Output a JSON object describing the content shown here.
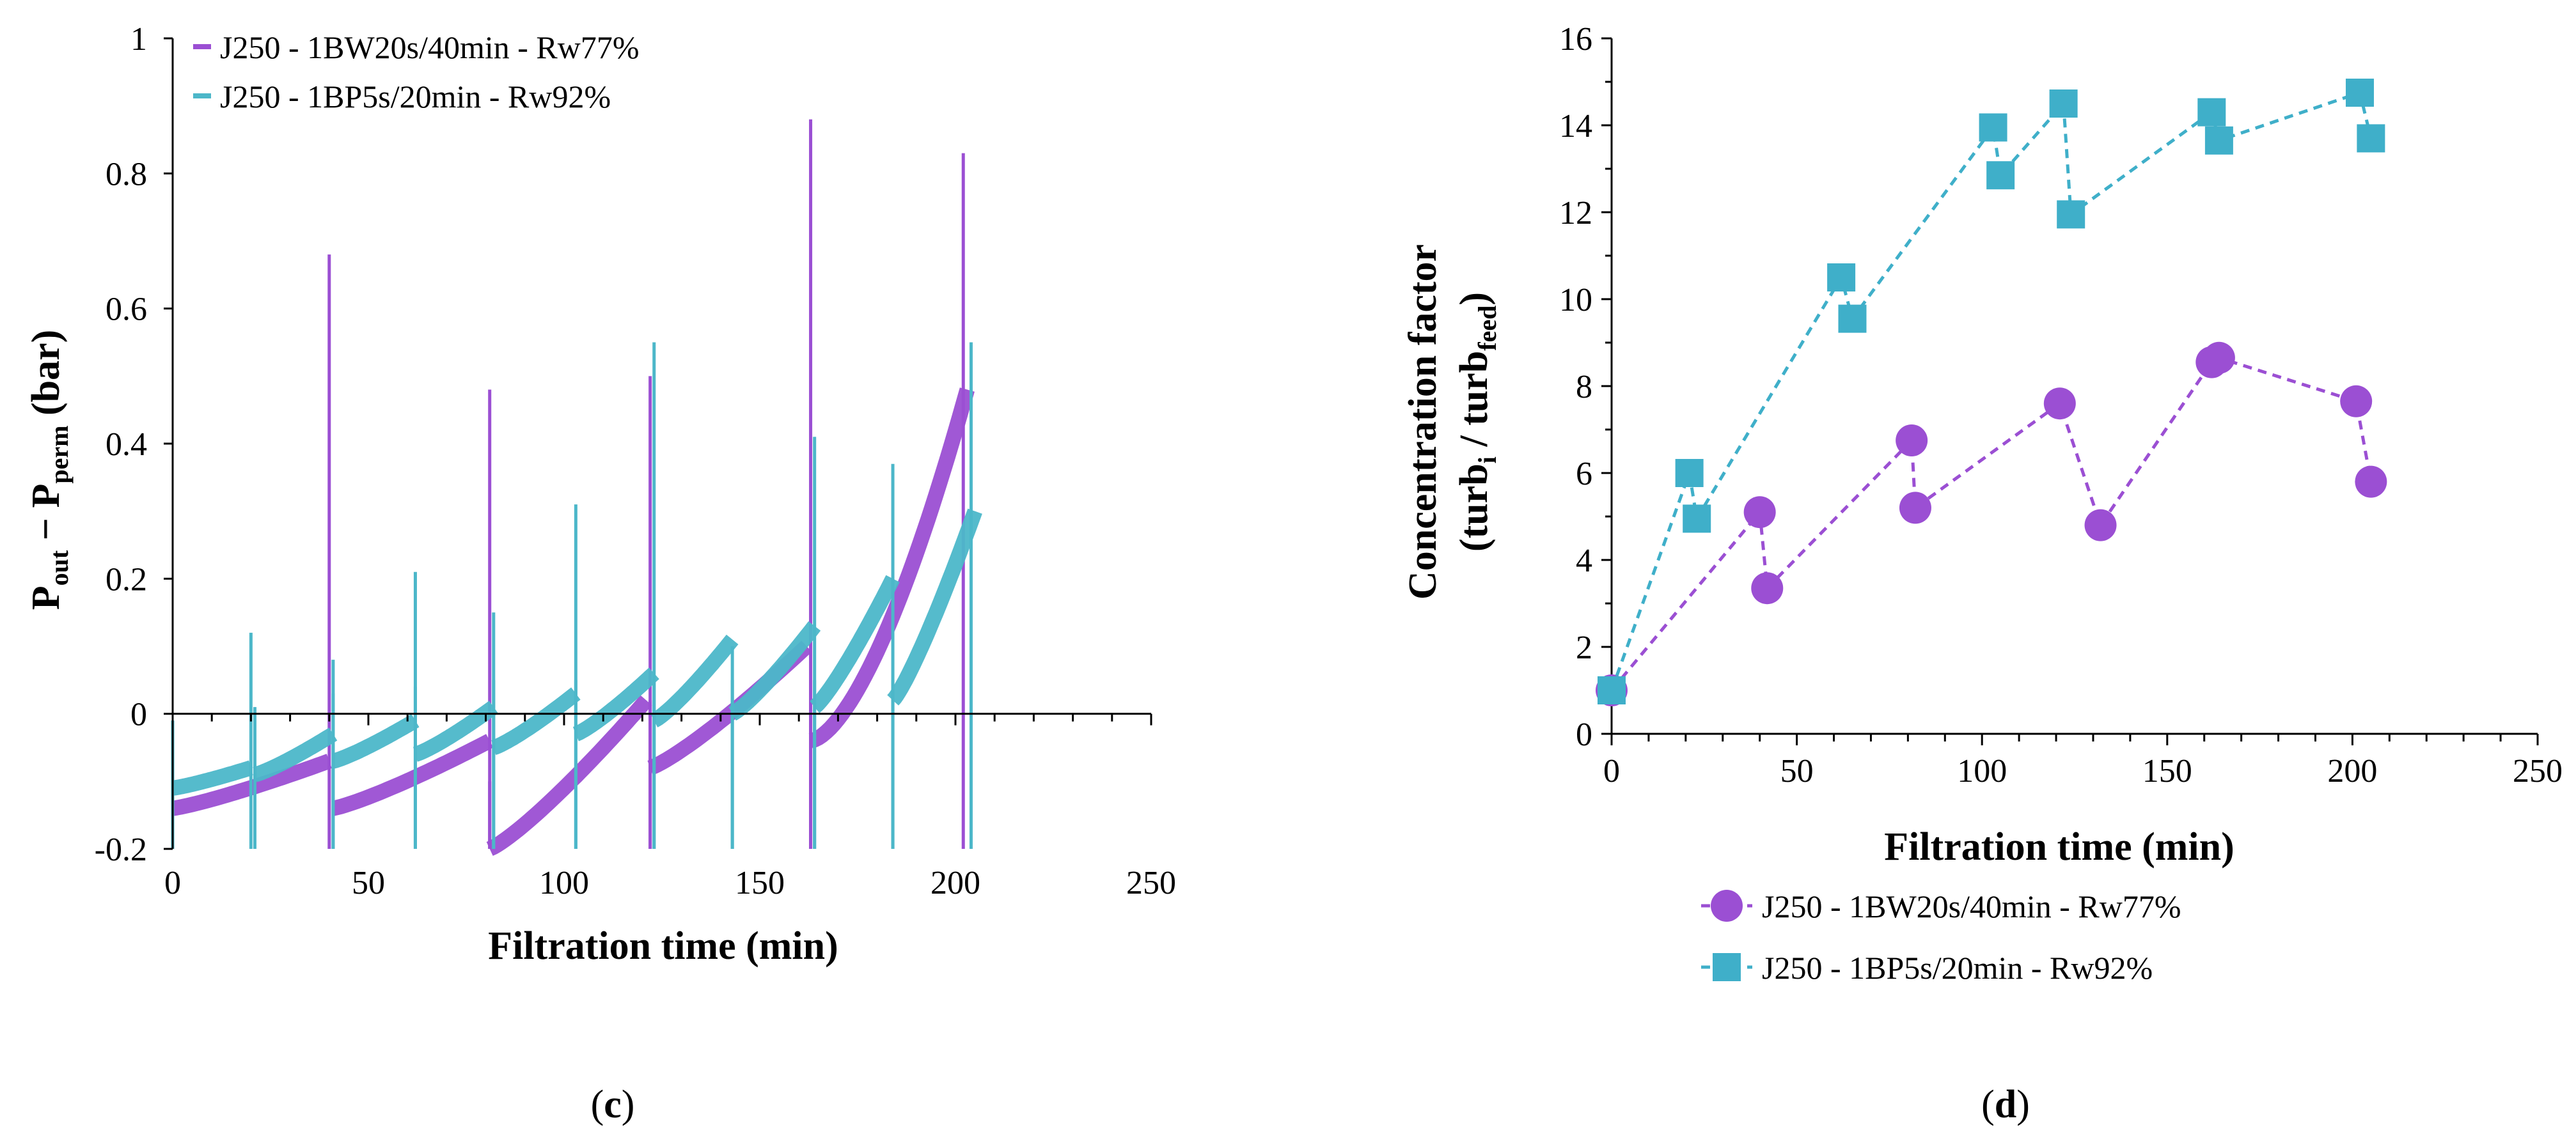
{
  "colors": {
    "purple": "#9B4FD3",
    "cyan": "#4CB7C9",
    "square": "#3FAFC9",
    "axis": "#000000"
  },
  "chart_data": [
    {
      "type": "line",
      "panel_label": "c",
      "xlabel": "Filtration time (min)",
      "ylabel": {
        "p1": "P",
        "p1_sub": "out",
        "minus": " − ",
        "p2": "P",
        "p2_sub": "perm",
        "unit": " (bar)"
      },
      "xlim": [
        0,
        250
      ],
      "ylim": [
        -0.2,
        1
      ],
      "xticks": [
        "0",
        "50",
        "100",
        "150",
        "200",
        "250"
      ],
      "yticks": [
        "-0.2",
        "0",
        "0.2",
        "0.4",
        "0.6",
        "0.8",
        "1"
      ],
      "legend_position": "top-left",
      "series": [
        {
          "name": "J250 - 1BW20s/40min - Rw77%",
          "color": "#9B4FD3",
          "cycles": [
            {
              "start": 0,
              "end": 40,
              "y_start": -0.14,
              "y_end": -0.07
            },
            {
              "start": 41,
              "end": 81,
              "y_start": -0.14,
              "y_end": -0.04
            },
            {
              "start": 81,
              "end": 121,
              "y_start": -0.2,
              "y_end": 0.02
            },
            {
              "start": 122,
              "end": 162,
              "y_start": -0.08,
              "y_end": 0.1
            },
            {
              "start": 163,
              "end": 203,
              "y_start": -0.04,
              "y_end": 0.48
            }
          ],
          "spikes": [
            {
              "x": 40,
              "y": 0.68
            },
            {
              "x": 81,
              "y": 0.48
            },
            {
              "x": 122,
              "y": 0.5
            },
            {
              "x": 163,
              "y": 0.88
            },
            {
              "x": 202,
              "y": 0.83
            }
          ]
        },
        {
          "name": "J250 - 1BP5s/20min - Rw92%",
          "color": "#4CB7C9",
          "cycles": [
            {
              "start": 0,
              "end": 20,
              "y_start": -0.11,
              "y_end": -0.08
            },
            {
              "start": 21,
              "end": 41,
              "y_start": -0.09,
              "y_end": -0.03
            },
            {
              "start": 41,
              "end": 62,
              "y_start": -0.07,
              "y_end": -0.01
            },
            {
              "start": 62,
              "end": 82,
              "y_start": -0.06,
              "y_end": 0.01
            },
            {
              "start": 82,
              "end": 103,
              "y_start": -0.05,
              "y_end": 0.03
            },
            {
              "start": 103,
              "end": 123,
              "y_start": -0.03,
              "y_end": 0.06
            },
            {
              "start": 123,
              "end": 143,
              "y_start": -0.01,
              "y_end": 0.11
            },
            {
              "start": 143,
              "end": 164,
              "y_start": 0,
              "y_end": 0.13
            },
            {
              "start": 164,
              "end": 184,
              "y_start": 0.01,
              "y_end": 0.2
            },
            {
              "start": 184,
              "end": 205,
              "y_start": 0.02,
              "y_end": 0.3
            }
          ],
          "spikes": [
            {
              "x": 20,
              "y": 0.12
            },
            {
              "x": 41,
              "y": 0.08
            },
            {
              "x": 62,
              "y": 0.21
            },
            {
              "x": 82,
              "y": 0.15
            },
            {
              "x": 103,
              "y": 0.31
            },
            {
              "x": 123,
              "y": 0.55
            },
            {
              "x": 143,
              "y": 0.1
            },
            {
              "x": 164,
              "y": 0.41
            },
            {
              "x": 184,
              "y": 0.37
            },
            {
              "x": 204,
              "y": 0.55
            }
          ]
        }
      ]
    },
    {
      "type": "scatter",
      "panel_label": "d",
      "xlabel": "Filtration time (min)",
      "ylabel": {
        "line1": "Concentration factor",
        "open": "(turb",
        "sub1": "i",
        "mid": " / turb",
        "sub2": "feed",
        "close": ")"
      },
      "xlim": [
        0,
        250
      ],
      "ylim": [
        0,
        16
      ],
      "xticks": [
        "0",
        "50",
        "100",
        "150",
        "200",
        "250"
      ],
      "yticks": [
        "0",
        "2",
        "4",
        "6",
        "8",
        "10",
        "12",
        "14",
        "16"
      ],
      "legend_position": "bottom",
      "series": [
        {
          "name": "J250 - 1BW20s/40min - Rw77%",
          "marker": "circle",
          "color": "#9B4FD3",
          "x": [
            0,
            40,
            42,
            81,
            82,
            121,
            132,
            162,
            164,
            201,
            205
          ],
          "y": [
            1,
            5.1,
            3.35,
            6.75,
            5.2,
            7.6,
            4.8,
            8.55,
            8.65,
            7.65,
            5.8
          ]
        },
        {
          "name": "J250 - 1BP5s/20min - Rw92%",
          "marker": "square",
          "color": "#3FAFC9",
          "x": [
            0,
            21,
            23,
            62,
            65,
            103,
            105,
            122,
            124,
            162,
            164,
            202,
            205
          ],
          "y": [
            1,
            6,
            4.95,
            10.5,
            9.55,
            13.95,
            12.85,
            14.5,
            11.95,
            14.3,
            13.65,
            14.75,
            13.7
          ]
        }
      ]
    }
  ]
}
